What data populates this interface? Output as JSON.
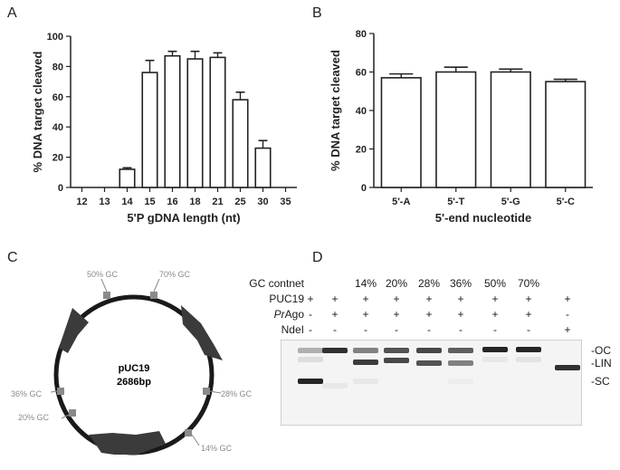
{
  "panels": {
    "a": {
      "letter": "A"
    },
    "b": {
      "letter": "B"
    },
    "c": {
      "letter": "C"
    },
    "d": {
      "letter": "D"
    }
  },
  "chart_data": [
    {
      "id": "A",
      "type": "bar",
      "categories": [
        "12",
        "13",
        "14",
        "15",
        "16",
        "18",
        "21",
        "25",
        "30",
        "35"
      ],
      "values": [
        0,
        0,
        12,
        76,
        87,
        85,
        86,
        58,
        26,
        0
      ],
      "errors": [
        0,
        0,
        1,
        8,
        3,
        5,
        3,
        5,
        5,
        0
      ],
      "xlabel": "5'P gDNA length (nt)",
      "ylabel": "% DNA target cleaved",
      "ylim": [
        0,
        100
      ],
      "yticks": [
        0,
        20,
        40,
        60,
        80,
        100
      ],
      "grid": false
    },
    {
      "id": "B",
      "type": "bar",
      "categories": [
        "5'-A",
        "5'-T",
        "5'-G",
        "5'-C"
      ],
      "values": [
        57,
        60,
        60,
        55
      ],
      "errors": [
        2,
        2.5,
        1.5,
        1.2
      ],
      "xlabel": "5'-end nucleotide",
      "ylabel": "% DNA target cleaved",
      "ylim": [
        0,
        80
      ],
      "yticks": [
        0,
        20,
        40,
        60,
        80
      ],
      "grid": false
    }
  ],
  "plasmid": {
    "name": "pUC19",
    "size": "2686bp",
    "markers": [
      "50% GC",
      "70% GC",
      "28% GC",
      "14% GC",
      "20% GC",
      "36% GC"
    ]
  },
  "gel": {
    "header_label": "GC contnet",
    "gc_values": [
      "",
      "",
      "14%",
      "20%",
      "28%",
      "36%",
      "50%",
      "70%",
      ""
    ],
    "rows": [
      {
        "label": "PUC19",
        "values": [
          "+",
          "+",
          "+",
          "+",
          "+",
          "+",
          "+",
          "+",
          "+"
        ]
      },
      {
        "label_prefix": "Pr",
        "label_suffix": "Ago",
        "values": [
          "-",
          "+",
          "+",
          "+",
          "+",
          "+",
          "+",
          "+",
          "-"
        ]
      },
      {
        "label": "NdeI",
        "values": [
          "-",
          "-",
          "-",
          "-",
          "-",
          "-",
          "-",
          "-",
          "+"
        ]
      }
    ],
    "band_labels": [
      "-OC",
      "-LIN",
      "-SC"
    ]
  }
}
